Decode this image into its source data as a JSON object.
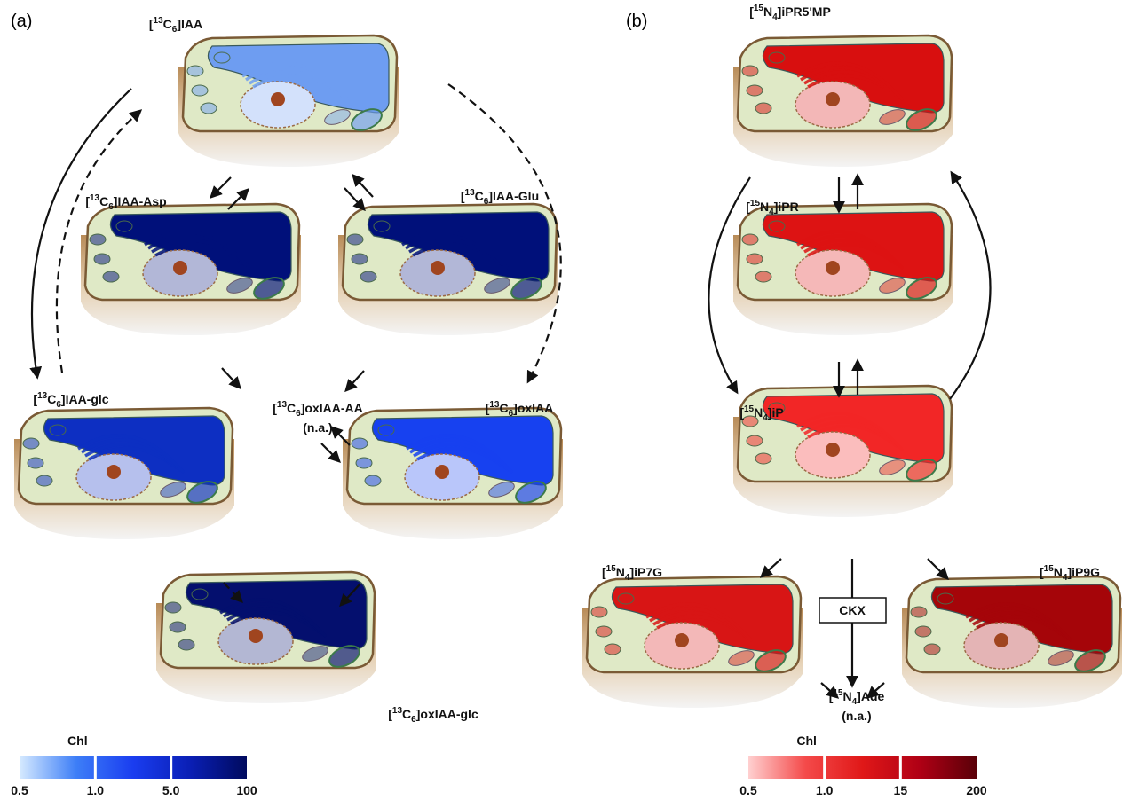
{
  "panel_a": {
    "tag": "(a)",
    "nodes": [
      {
        "label": [
          {
            "t": "["
          },
          {
            "sup": "13"
          },
          {
            "t": "C"
          },
          {
            "sub": "6"
          },
          {
            "t": "]IAA"
          }
        ],
        "color": "#6e9df1"
      },
      {
        "label": [
          {
            "t": "["
          },
          {
            "sup": "13"
          },
          {
            "t": "C"
          },
          {
            "sub": "6"
          },
          {
            "t": "]IAA-Asp"
          }
        ],
        "color": "#00107a"
      },
      {
        "label": [
          {
            "t": "["
          },
          {
            "sup": "13"
          },
          {
            "t": "C"
          },
          {
            "sub": "6"
          },
          {
            "t": "]IAA-Glu"
          }
        ],
        "color": "#00107a"
      },
      {
        "label": [
          {
            "t": "["
          },
          {
            "sup": "13"
          },
          {
            "t": "C"
          },
          {
            "sub": "6"
          },
          {
            "t": "]IAA-glc"
          }
        ],
        "color": "#0d2fc2"
      },
      {
        "label": [
          {
            "t": "["
          },
          {
            "sup": "13"
          },
          {
            "t": "C"
          },
          {
            "sub": "6"
          },
          {
            "t": "]oxIAA-AA"
          }
        ],
        "note": "(n.a.)"
      },
      {
        "label": [
          {
            "t": "["
          },
          {
            "sup": "13"
          },
          {
            "t": "C"
          },
          {
            "sub": "6"
          },
          {
            "t": "]oxIAA"
          }
        ],
        "color": "#1741f0"
      },
      {
        "label": [
          {
            "t": "["
          },
          {
            "sup": "13"
          },
          {
            "t": "C"
          },
          {
            "sub": "6"
          },
          {
            "t": "]oxIAA-glc"
          }
        ],
        "color": "#040f6e"
      }
    ],
    "colorbar": {
      "title": "Chl",
      "ticks": [
        "0.5",
        "1.0",
        "5.0",
        "100"
      ],
      "colors": [
        "#d6eaff",
        "#3d7ef7",
        "#1a3df0",
        "#0a1fb5",
        "#000a5e"
      ]
    }
  },
  "panel_b": {
    "tag": "(b)",
    "nodes": [
      {
        "label": [
          {
            "t": "["
          },
          {
            "sup": "15"
          },
          {
            "t": "N"
          },
          {
            "sub": "4"
          },
          {
            "t": "]iPR5'MP"
          }
        ],
        "color": "#d80f0f"
      },
      {
        "label": [
          {
            "t": "["
          },
          {
            "sup": "15"
          },
          {
            "t": "N"
          },
          {
            "sub": "4"
          },
          {
            "t": "]iPR"
          }
        ],
        "color": "#dd1313"
      },
      {
        "label": [
          {
            "t": "["
          },
          {
            "sup": "15"
          },
          {
            "t": "N"
          },
          {
            "sub": "4"
          },
          {
            "t": "]iP"
          }
        ],
        "color": "#f22626"
      },
      {
        "label": [
          {
            "t": "["
          },
          {
            "sup": "15"
          },
          {
            "t": "N"
          },
          {
            "sub": "4"
          },
          {
            "t": "]iP7G"
          }
        ],
        "color": "#d81515"
      },
      {
        "label": [
          {
            "t": "["
          },
          {
            "sup": "15"
          },
          {
            "t": "N"
          },
          {
            "sub": "4"
          },
          {
            "t": "]iP9G"
          }
        ],
        "color": "#a50509"
      },
      {
        "label": [
          {
            "t": "["
          },
          {
            "sup": "15"
          },
          {
            "t": "N"
          },
          {
            "sub": "4"
          },
          {
            "t": "]Ade"
          }
        ],
        "note": "(n.a.)"
      }
    ],
    "enzyme": "CKX",
    "colorbar": {
      "title": "Chl",
      "ticks": [
        "0.5",
        "1.0",
        "15",
        "200"
      ],
      "colors": [
        "#ffd0d0",
        "#f44a4a",
        "#e01818",
        "#b00015",
        "#5a0008"
      ]
    }
  }
}
